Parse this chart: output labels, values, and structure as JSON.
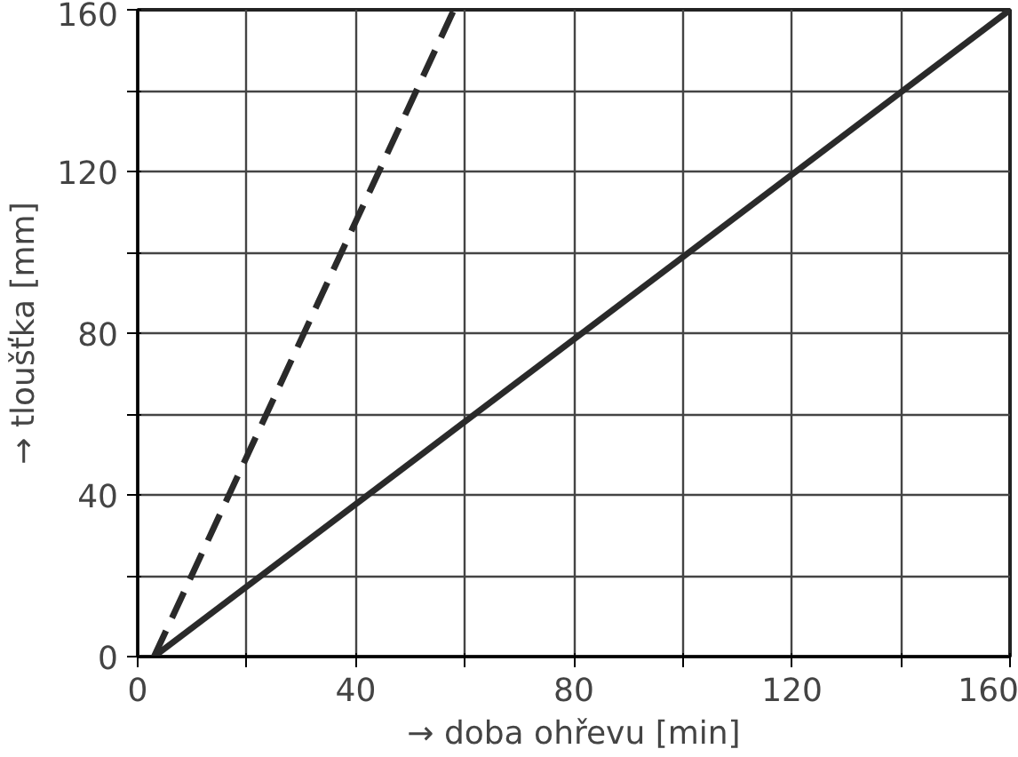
{
  "chart_data": {
    "type": "line",
    "xlabel": "→ doba ohřevu [min]",
    "ylabel": "→ tloušťka [mm]",
    "xlim": [
      0,
      160
    ],
    "ylim": [
      0,
      160
    ],
    "xticks": [
      0,
      {
        "value": 20,
        "label": null
      },
      40,
      {
        "value": 60,
        "label": null
      },
      80,
      {
        "value": 100,
        "label": null
      },
      120,
      {
        "value": 140,
        "label": null
      },
      160
    ],
    "yticks": [
      0,
      {
        "value": 20,
        "label": null
      },
      40,
      {
        "value": 60,
        "label": null
      },
      80,
      {
        "value": 100,
        "label": null
      },
      120,
      {
        "value": 140,
        "label": null
      },
      160
    ],
    "grid": true,
    "series": [
      {
        "color": "#2a2a2a",
        "x": [
          3,
          58
        ],
        "values": [
          0,
          160
        ],
        "line_style": "dashed"
      },
      {
        "color": "#2a2a2a",
        "x": [
          3,
          160
        ],
        "values": [
          0,
          160
        ],
        "line_style": "solid"
      }
    ]
  }
}
